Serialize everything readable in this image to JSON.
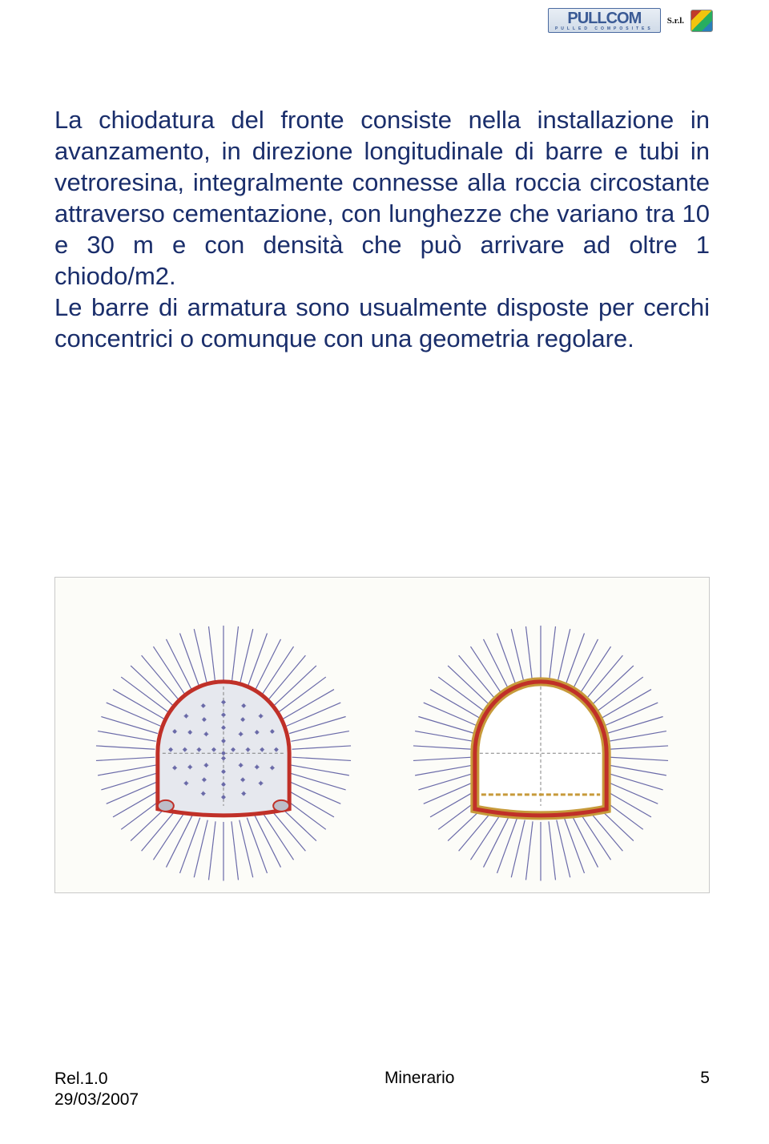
{
  "header": {
    "logo_main": "PULLCOM",
    "logo_sub": "PULLED COMPOSITES",
    "suffix": "S.r.l."
  },
  "body": {
    "paragraph": "La chiodatura del fronte consiste nella installazione in avanzamento, in direzione longitudinale di barre e tubi in vetroresina, integralmente connesse alla roccia circostante attraverso cementazione, con lunghezze che variano tra 10 e 30 m e con densità che può arrivare ad oltre 1 chiodo/m2.\nLe barre di armatura sono usualmente disposte per cerchi concentrici o comunque con una geometria regolare."
  },
  "figure": {
    "background": "#fcfcf8",
    "border_color": "#c9c9c9",
    "diagrams": [
      {
        "type": "tunnel-cross-section",
        "with_face_bolts": true,
        "outline_color": "#c03028",
        "outline_width": 5,
        "fill_color": "#e6e8ee",
        "bolt_color": "#6a6aa8",
        "bolt_stroke_width": 1.2,
        "radial_bolt_count": 54,
        "radial_bolt_length": 70,
        "face_bolt_color": "#6a6aa8",
        "face_dot_color": "#6a6aa8",
        "crosshair_color": "#808080"
      },
      {
        "type": "tunnel-cross-section",
        "with_face_bolts": false,
        "outline_color": "#c79a3a",
        "inner_color": "#c03028",
        "outline_width": 7,
        "fill_color": "#ffffff",
        "bolt_color": "#6a6aa8",
        "bolt_stroke_width": 1.2,
        "radial_bolt_count": 54,
        "radial_bolt_length": 70,
        "crosshair_color": "#808080",
        "invert_color": "#c79a3a"
      }
    ]
  },
  "footer": {
    "rel": "Rel.1.0",
    "date": "29/03/2007",
    "center": "Minerario",
    "page": "5"
  },
  "colors": {
    "body_text": "#1a2e6b",
    "page_bg": "#ffffff"
  }
}
